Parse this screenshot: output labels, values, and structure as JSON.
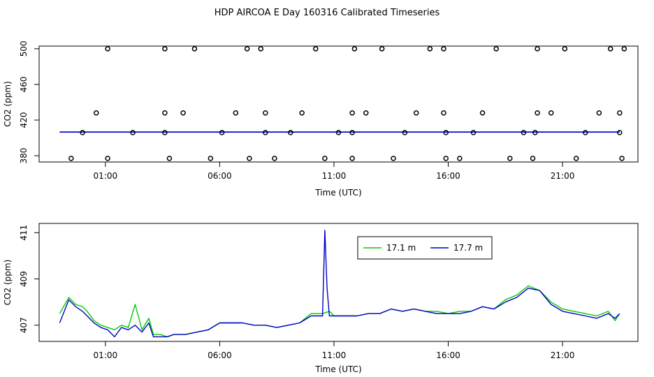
{
  "title": "HDP AIRCOA E  Day 160316  Calibrated Timeseries",
  "chart_data": [
    {
      "type": "scatter",
      "xlabel": "Time (UTC)",
      "ylabel": "CO2 (ppm)",
      "x_unit": "hours_utc",
      "xlim": [
        -1.9,
        24.3
      ],
      "ylim": [
        373,
        503
      ],
      "xticks": [
        {
          "value": 1,
          "label": "01:00"
        },
        {
          "value": 6,
          "label": "06:00"
        },
        {
          "value": 11,
          "label": "11:00"
        },
        {
          "value": 16,
          "label": "16:00"
        },
        {
          "value": 21,
          "label": "21:00"
        }
      ],
      "yticks": [
        {
          "value": 380,
          "label": "380"
        },
        {
          "value": 420,
          "label": "420"
        },
        {
          "value": 460,
          "label": "460"
        },
        {
          "value": 500,
          "label": "500"
        }
      ],
      "line": {
        "x_start": -1.0,
        "x_end": 23.5,
        "value": 406.5,
        "colors": [
          "#00cc00",
          "#0000cc"
        ]
      },
      "points": {
        "x": [
          -0.5,
          1.1,
          3.8,
          5.6,
          7.3,
          8.4,
          10.6,
          11.8,
          13.6,
          15.9,
          16.5,
          18.7,
          19.7,
          21.6,
          23.6,
          0.0,
          2.2,
          3.6,
          6.1,
          8.0,
          9.1,
          11.2,
          11.8,
          14.1,
          15.9,
          17.1,
          19.3,
          19.8,
          22.0,
          23.5,
          0.6,
          3.6,
          4.4,
          6.7,
          8.0,
          9.6,
          11.8,
          12.4,
          14.6,
          15.8,
          17.5,
          19.9,
          20.5,
          22.6,
          23.5,
          1.1,
          3.6,
          4.9,
          7.2,
          7.8,
          10.2,
          11.9,
          13.1,
          15.2,
          15.8,
          18.1,
          19.9,
          21.1,
          23.1,
          23.7
        ],
        "y": [
          377,
          377,
          377,
          377,
          377,
          377,
          377,
          377,
          377,
          377,
          377,
          377,
          377,
          377,
          377,
          406,
          406,
          406,
          406,
          406,
          406,
          406,
          406,
          406,
          406,
          406,
          406,
          406,
          406,
          406,
          428,
          428,
          428,
          428,
          428,
          428,
          428,
          428,
          428,
          428,
          428,
          428,
          428,
          428,
          428,
          500,
          500,
          500,
          500,
          500,
          500,
          500,
          500,
          500,
          500,
          500,
          500,
          500,
          500,
          500
        ]
      }
    },
    {
      "type": "line",
      "xlabel": "Time (UTC)",
      "ylabel": "CO2 (ppm)",
      "x_unit": "hours_utc",
      "xlim": [
        -1.9,
        24.3
      ],
      "ylim": [
        406.3,
        411.4
      ],
      "xticks": [
        {
          "value": 1,
          "label": "01:00"
        },
        {
          "value": 6,
          "label": "06:00"
        },
        {
          "value": 11,
          "label": "11:00"
        },
        {
          "value": 16,
          "label": "16:00"
        },
        {
          "value": 21,
          "label": "21:00"
        }
      ],
      "yticks": [
        {
          "value": 407,
          "label": "407"
        },
        {
          "value": 409,
          "label": "409"
        },
        {
          "value": 411,
          "label": "411"
        }
      ],
      "legend_position": "top-center",
      "series": [
        {
          "name": "17.1 m",
          "color": "#00cc00",
          "x": [
            -1.0,
            -0.6,
            -0.3,
            0.0,
            0.2,
            0.5,
            0.8,
            1.1,
            1.4,
            1.7,
            2.0,
            2.3,
            2.6,
            2.9,
            3.1,
            3.4,
            3.7,
            4.0,
            4.5,
            5.0,
            5.5,
            6.0,
            6.5,
            7.0,
            7.5,
            8.0,
            8.5,
            9.0,
            9.5,
            10.0,
            10.5,
            10.8,
            11.0,
            11.5,
            12.0,
            12.5,
            13.0,
            13.5,
            14.0,
            14.5,
            15.0,
            15.5,
            16.0,
            16.5,
            17.0,
            17.5,
            18.0,
            18.5,
            19.0,
            19.5,
            20.0,
            20.5,
            21.0,
            21.5,
            22.0,
            22.5,
            23.0,
            23.3,
            23.5
          ],
          "y": [
            407.5,
            408.2,
            407.9,
            407.8,
            407.6,
            407.2,
            407.0,
            406.9,
            406.8,
            407.0,
            406.9,
            407.9,
            406.8,
            407.3,
            406.6,
            406.6,
            406.5,
            406.6,
            406.6,
            406.7,
            406.8,
            407.1,
            407.1,
            407.1,
            407.0,
            407.0,
            406.9,
            407.0,
            407.1,
            407.5,
            407.5,
            407.6,
            407.4,
            407.4,
            407.4,
            407.5,
            407.5,
            407.7,
            407.6,
            407.7,
            407.6,
            407.6,
            407.5,
            407.6,
            407.6,
            407.8,
            407.7,
            408.1,
            408.3,
            408.7,
            408.5,
            408.0,
            407.7,
            407.6,
            407.5,
            407.4,
            407.6,
            407.2,
            407.5
          ]
        },
        {
          "name": "17.7 m",
          "color": "#0000cc",
          "x": [
            -1.0,
            -0.6,
            -0.3,
            0.0,
            0.2,
            0.5,
            0.8,
            1.1,
            1.4,
            1.7,
            2.0,
            2.3,
            2.6,
            2.9,
            3.1,
            3.4,
            3.7,
            4.0,
            4.5,
            5.0,
            5.5,
            6.0,
            6.5,
            7.0,
            7.5,
            8.0,
            8.5,
            9.0,
            9.5,
            10.0,
            10.3,
            10.5,
            10.6,
            10.7,
            10.8,
            11.0,
            11.5,
            12.0,
            12.5,
            13.0,
            13.5,
            14.0,
            14.5,
            15.0,
            15.5,
            16.0,
            16.5,
            17.0,
            17.5,
            18.0,
            18.5,
            19.0,
            19.5,
            20.0,
            20.5,
            21.0,
            21.5,
            22.0,
            22.5,
            23.0,
            23.3,
            23.5
          ],
          "y": [
            407.1,
            408.1,
            407.8,
            407.6,
            407.4,
            407.1,
            406.9,
            406.8,
            406.5,
            406.9,
            406.8,
            407.0,
            406.7,
            407.1,
            406.5,
            406.5,
            406.5,
            406.6,
            406.6,
            406.7,
            406.8,
            407.1,
            407.1,
            407.1,
            407.0,
            407.0,
            406.9,
            407.0,
            407.1,
            407.4,
            407.4,
            407.4,
            411.1,
            408.6,
            407.4,
            407.4,
            407.4,
            407.4,
            407.5,
            407.5,
            407.7,
            407.6,
            407.7,
            407.6,
            407.5,
            407.5,
            407.5,
            407.6,
            407.8,
            407.7,
            408.0,
            408.2,
            408.6,
            408.5,
            407.9,
            407.6,
            407.5,
            407.4,
            407.3,
            407.5,
            407.3,
            407.5
          ]
        }
      ]
    }
  ]
}
